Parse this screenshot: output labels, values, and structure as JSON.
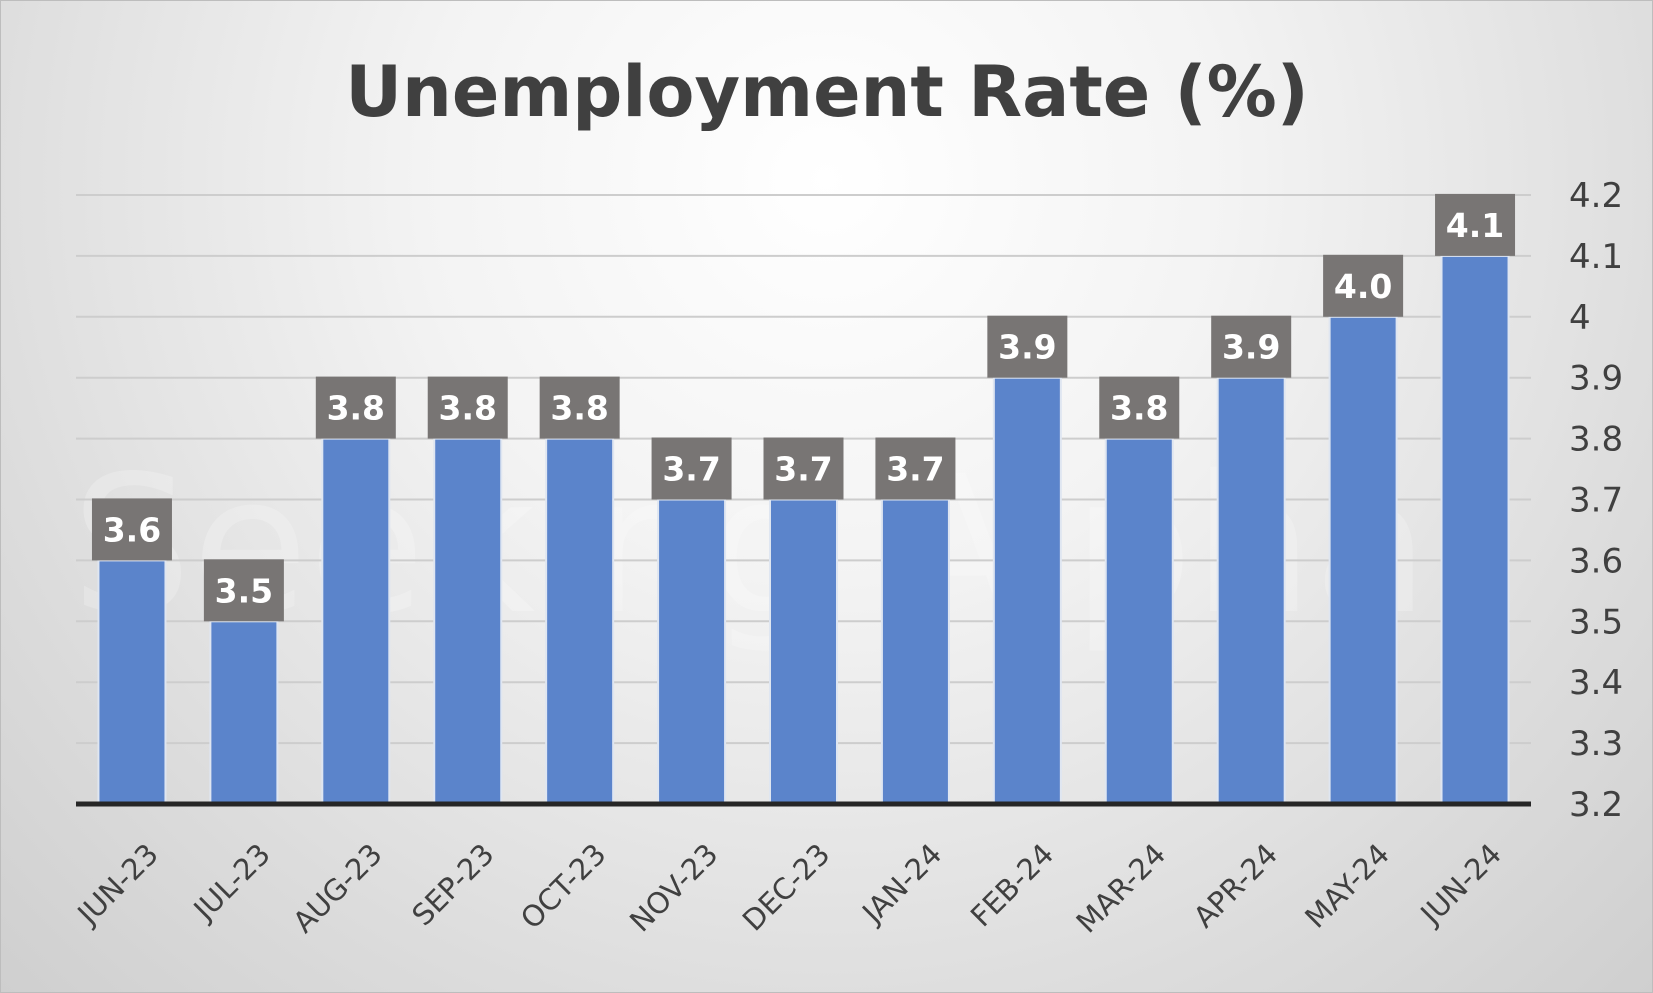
{
  "chart_data": {
    "type": "bar",
    "title": "Unemployment Rate (%)",
    "categories": [
      "JUN-23",
      "JUL-23",
      "AUG-23",
      "SEP-23",
      "OCT-23",
      "NOV-23",
      "DEC-23",
      "JAN-24",
      "FEB-24",
      "MAR-24",
      "APR-24",
      "MAY-24",
      "JUN-24"
    ],
    "values": [
      3.6,
      3.5,
      3.8,
      3.8,
      3.8,
      3.7,
      3.7,
      3.7,
      3.9,
      3.8,
      3.9,
      4.0,
      4.1
    ],
    "data_labels": [
      "3.6",
      "3.5",
      "3.8",
      "3.8",
      "3.8",
      "3.7",
      "3.7",
      "3.7",
      "3.9",
      "3.8",
      "3.9",
      "4.0",
      "4.1"
    ],
    "y_ticks": [
      "3.2",
      "3.3",
      "3.4",
      "3.5",
      "3.6",
      "3.7",
      "3.8",
      "3.9",
      "4",
      "4.1",
      "4.2"
    ],
    "ylim": [
      3.2,
      4.2
    ],
    "y_axis_position": "right",
    "grid": true,
    "legend": "none",
    "watermark": "Seeking Alpha",
    "colors": {
      "bar": "#5b84cb",
      "bar_edge": "#dfe6f1",
      "label_box": "#787574",
      "label_text": "#ffffff",
      "grid": "#cdcdcd",
      "axis": "#262626",
      "text": "#404040"
    }
  }
}
